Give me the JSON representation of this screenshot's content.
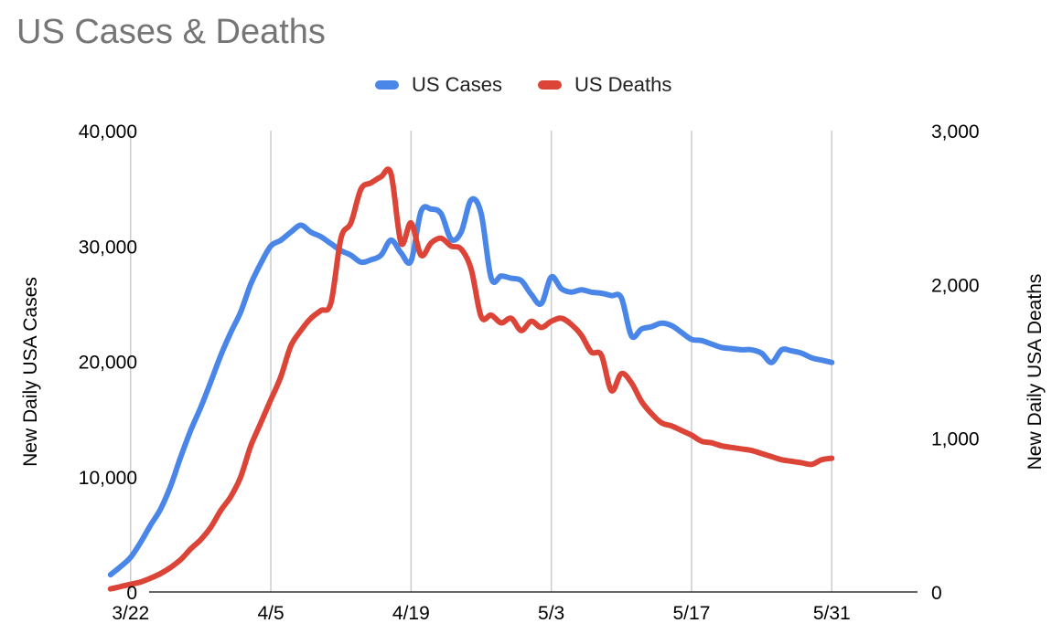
{
  "chart_data": {
    "type": "line",
    "title": "US Cases & Deaths",
    "x_tick_labels": [
      "3/22",
      "4/5",
      "4/19",
      "5/3",
      "5/17",
      "5/31"
    ],
    "x_tick_day_index": [
      5,
      19,
      33,
      47,
      61,
      75
    ],
    "x_range_day_index": [
      0,
      75
    ],
    "y_left": {
      "label": "New Daily USA Cases",
      "ylim": [
        0,
        40000
      ],
      "ticks": [
        0,
        10000,
        20000,
        30000,
        40000
      ],
      "tick_labels": [
        "0",
        "10,000",
        "20,000",
        "30,000",
        "40,000"
      ]
    },
    "y_right": {
      "label": "New Daily USA Deaths",
      "ylim": [
        0,
        3000
      ],
      "ticks": [
        0,
        1000,
        2000,
        3000
      ],
      "tick_labels": [
        "0",
        "1,000",
        "2,000",
        "3,000"
      ]
    },
    "grid": "vertical",
    "legend": "top-center",
    "series": [
      {
        "name": "US Cases",
        "axis": "left",
        "color": "#4a86e8",
        "x": [
          3,
          4,
          5,
          6,
          7,
          8,
          9,
          10,
          11,
          12,
          13,
          14,
          15,
          16,
          17,
          18,
          19,
          20,
          21,
          22,
          23,
          24,
          25,
          26,
          27,
          28,
          29,
          30,
          31,
          32,
          33,
          34,
          35,
          36,
          37,
          38,
          39,
          40,
          41,
          42,
          43,
          44,
          45,
          46,
          47,
          48,
          49,
          50,
          51,
          52,
          53,
          54,
          55,
          56,
          57,
          58,
          59,
          60,
          61,
          62,
          63,
          64,
          65,
          66,
          67,
          68,
          69,
          70,
          71,
          72,
          73,
          74,
          75
        ],
        "y": [
          1500,
          2200,
          3000,
          4300,
          5800,
          7200,
          9200,
          11700,
          14000,
          16000,
          18200,
          20500,
          22500,
          24300,
          26700,
          28500,
          30000,
          30500,
          31200,
          31800,
          31200,
          30800,
          30200,
          29600,
          29200,
          28600,
          28800,
          29200,
          30500,
          29400,
          28700,
          33000,
          33200,
          32800,
          30600,
          31200,
          34000,
          32800,
          27200,
          27400,
          27200,
          27000,
          25800,
          25000,
          27300,
          26300,
          26000,
          26200,
          26000,
          25900,
          25700,
          25500,
          22200,
          22800,
          23000,
          23300,
          23100,
          22500,
          21900,
          21800,
          21500,
          21200,
          21100,
          21000,
          21000,
          20700,
          19900,
          21000,
          20900,
          20700,
          20300,
          20100,
          19900
        ]
      },
      {
        "name": "US Deaths",
        "axis": "right",
        "color": "#db4437",
        "x": [
          3,
          4,
          5,
          6,
          7,
          8,
          9,
          10,
          11,
          12,
          13,
          14,
          15,
          16,
          17,
          18,
          19,
          20,
          21,
          22,
          23,
          24,
          25,
          26,
          27,
          28,
          29,
          30,
          31,
          32,
          33,
          34,
          35,
          36,
          37,
          38,
          39,
          40,
          41,
          42,
          43,
          44,
          45,
          46,
          47,
          48,
          49,
          50,
          51,
          52,
          53,
          54,
          55,
          56,
          57,
          58,
          59,
          60,
          61,
          62,
          63,
          64,
          65,
          66,
          67,
          68,
          69,
          70,
          71,
          72,
          73,
          74,
          75
        ],
        "y": [
          20,
          35,
          50,
          65,
          90,
          120,
          160,
          210,
          280,
          340,
          420,
          530,
          620,
          750,
          950,
          1100,
          1250,
          1400,
          1600,
          1700,
          1780,
          1830,
          1880,
          2300,
          2400,
          2620,
          2660,
          2700,
          2720,
          2270,
          2400,
          2190,
          2270,
          2300,
          2250,
          2230,
          2100,
          1790,
          1800,
          1750,
          1780,
          1700,
          1760,
          1720,
          1760,
          1780,
          1740,
          1670,
          1560,
          1540,
          1310,
          1420,
          1360,
          1240,
          1160,
          1100,
          1080,
          1050,
          1020,
          980,
          970,
          950,
          940,
          930,
          920,
          900,
          880,
          860,
          850,
          840,
          830,
          860,
          870
        ]
      }
    ]
  }
}
